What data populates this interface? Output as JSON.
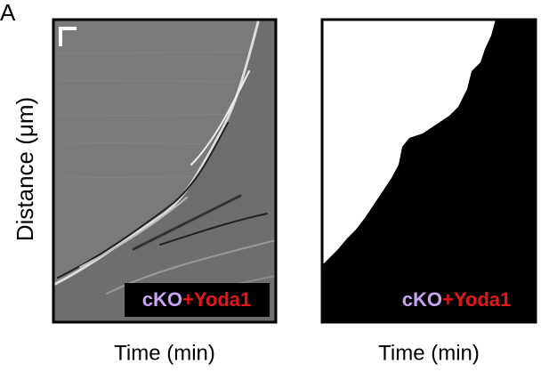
{
  "panel_label": "A",
  "y_axis_label": "Distance (μm)",
  "panels": [
    {
      "label": {
        "first": "cKO",
        "second": "+Yoda1"
      },
      "x_axis_label": "Time (min)"
    },
    {
      "label": {
        "first": "cKO",
        "second": "+Yoda1"
      },
      "x_axis_label": "Time (min)"
    }
  ]
}
